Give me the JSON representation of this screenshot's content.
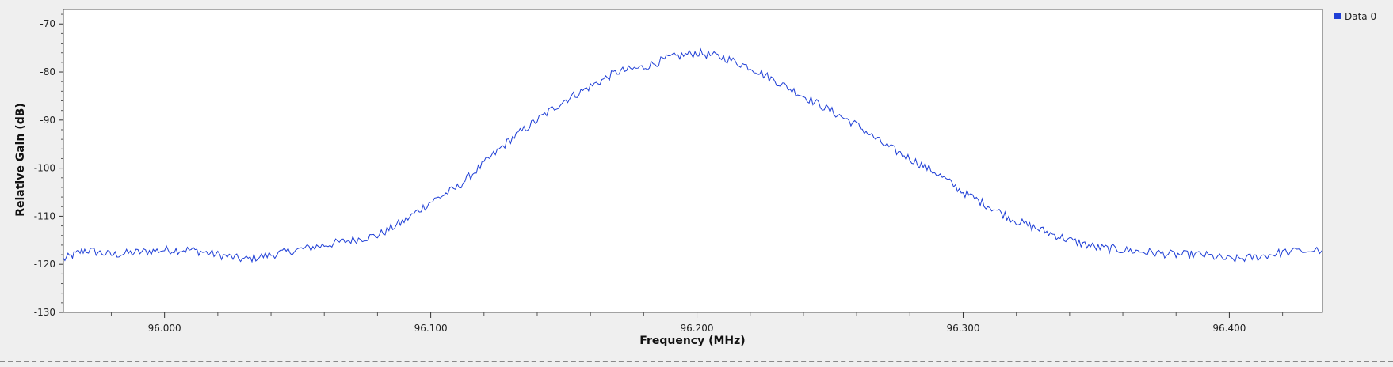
{
  "chart_data": {
    "type": "line",
    "title": "",
    "xlabel": "Frequency (MHz)",
    "ylabel": "Relative Gain (dB)",
    "xlim": [
      95.962,
      96.435
    ],
    "ylim": [
      -130,
      -67
    ],
    "x_ticks": [
      {
        "value": 96.0,
        "label": "96.000"
      },
      {
        "value": 96.1,
        "label": "96.100"
      },
      {
        "value": 96.2,
        "label": "96.200"
      },
      {
        "value": 96.3,
        "label": "96.300"
      },
      {
        "value": 96.4,
        "label": "96.400"
      }
    ],
    "y_ticks": [
      {
        "value": -70,
        "label": "-70"
      },
      {
        "value": -80,
        "label": "-80"
      },
      {
        "value": -90,
        "label": "-90"
      },
      {
        "value": -100,
        "label": "-100"
      },
      {
        "value": -110,
        "label": "-110"
      },
      {
        "value": -120,
        "label": "-120"
      },
      {
        "value": -130,
        "label": "-130"
      }
    ],
    "grid": false,
    "legend": {
      "position": "top-right",
      "entries": [
        "Data 0"
      ]
    },
    "series": [
      {
        "name": "Data 0",
        "color": "#1f3fd6",
        "x": [
          95.962,
          95.97,
          95.98,
          95.99,
          96.0,
          96.01,
          96.02,
          96.03,
          96.04,
          96.05,
          96.06,
          96.07,
          96.08,
          96.09,
          96.1,
          96.11,
          96.12,
          96.13,
          96.14,
          96.15,
          96.16,
          96.17,
          96.18,
          96.19,
          96.2,
          96.21,
          96.22,
          96.23,
          96.24,
          96.25,
          96.26,
          96.27,
          96.28,
          96.29,
          96.3,
          96.31,
          96.32,
          96.33,
          96.34,
          96.35,
          96.36,
          96.37,
          96.38,
          96.39,
          96.4,
          96.41,
          96.42,
          96.435
        ],
        "y": [
          -119,
          -117,
          -118,
          -117.5,
          -117,
          -117,
          -118,
          -119,
          -118,
          -117,
          -116,
          -115,
          -114,
          -111,
          -107,
          -104,
          -99,
          -94,
          -90,
          -86,
          -83,
          -80,
          -79,
          -77,
          -76,
          -77,
          -79,
          -82,
          -85,
          -88,
          -91,
          -95,
          -98,
          -101,
          -105,
          -108,
          -111,
          -113,
          -115,
          -116.5,
          -117,
          -117.5,
          -118,
          -118,
          -119,
          -118.5,
          -117.5,
          -117
        ]
      }
    ]
  }
}
